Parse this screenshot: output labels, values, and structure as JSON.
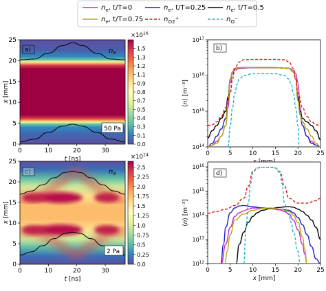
{
  "legend": {
    "entries": [
      {
        "label": "n_e, t/T=0",
        "color": "#cc22cc",
        "dash": "solid"
      },
      {
        "label": "n_e, t/T=0.25",
        "color": "#1f1fcc",
        "dash": "solid"
      },
      {
        "label": "n_e, t/T=0.5",
        "color": "#000000",
        "dash": "solid"
      },
      {
        "label": "n_e, t/T=0.75",
        "color": "#b5a800",
        "dash": "solid"
      },
      {
        "label": "n_O2+",
        "color": "#dd1111",
        "dash": "dashed"
      },
      {
        "label": "n_O−",
        "color": "#22b5c9",
        "dash": "dashed"
      }
    ]
  },
  "chart_data": [
    {
      "id": "a",
      "type": "heatmap",
      "panel_label": "a)",
      "species_label": "n_e",
      "corner_text": "50 Pa",
      "xlabel": "t [ns]",
      "ylabel": "x [mm]",
      "x_ticks": [
        "0",
        "10",
        "20",
        "30"
      ],
      "y_ticks": [
        "0",
        "5",
        "10",
        "15",
        "20",
        "25"
      ],
      "xlim": [
        0,
        37
      ],
      "ylim": [
        0,
        25
      ],
      "colorbar": {
        "exponent_label": "×10^16",
        "ticks": [
          "0.0",
          "0.1",
          "0.3",
          "0.4",
          "0.5",
          "0.7",
          "0.8",
          "0.9",
          "1.1",
          "1.2",
          "1.3",
          "1.5"
        ],
        "tick_values": [
          0.0,
          0.13,
          0.27,
          0.4,
          0.53,
          0.67,
          0.8,
          0.93,
          1.07,
          1.2,
          1.33,
          1.47
        ],
        "max": 1.6
      },
      "sheath_edges": {
        "t": [
          0,
          5,
          10,
          15,
          18.5,
          22,
          27,
          32,
          37
        ],
        "x_lower": [
          0.5,
          1.2,
          2.8,
          4.3,
          4.8,
          4.3,
          2.8,
          1.2,
          0.5
        ],
        "x_upper": [
          20.2,
          20.4,
          21.8,
          23.6,
          24.3,
          23.6,
          21.8,
          20.4,
          20.2
        ]
      }
    },
    {
      "id": "b",
      "type": "line",
      "panel_label": "b)",
      "xlabel": "x [mm]",
      "ylabel": "⟨n⟩ [m⁻³]",
      "x_ticks": [
        "0",
        "5",
        "10",
        "15",
        "20",
        "25"
      ],
      "y_ticks": [
        "10^14",
        "10^15",
        "10^16",
        "10^17"
      ],
      "xlim": [
        0,
        25
      ],
      "ylim_log10": [
        14,
        17
      ],
      "series": [
        {
          "ref": "n_e, t/T=0",
          "x": [
            0,
            1,
            2,
            3,
            4,
            4.5,
            5,
            5.5,
            6,
            7,
            10,
            12.5,
            15,
            18,
            19,
            19.5,
            20,
            20.5,
            21,
            22,
            23,
            24,
            25
          ],
          "log10": [
            14.0,
            14.05,
            14.15,
            14.3,
            14.6,
            15.1,
            15.8,
            16.05,
            16.15,
            16.2,
            16.22,
            16.22,
            16.22,
            16.2,
            16.15,
            16.05,
            15.8,
            15.1,
            14.6,
            14.3,
            14.15,
            14.05,
            14.0
          ]
        },
        {
          "ref": "n_e, t/T=0.25",
          "x": [
            0,
            1,
            2,
            3,
            4,
            4.5,
            5,
            5.5,
            6,
            7,
            10,
            12.5,
            15,
            18,
            19,
            19.5,
            20,
            20.5,
            21,
            22,
            23,
            24,
            25
          ],
          "log10": [
            14.0,
            14.1,
            14.3,
            14.5,
            14.8,
            15.3,
            15.9,
            16.1,
            16.2,
            16.22,
            16.22,
            16.22,
            16.22,
            16.2,
            16.1,
            15.9,
            15.3,
            14.9,
            14.6,
            14.3,
            14.1,
            14.05,
            14.0
          ]
        },
        {
          "ref": "n_e, t/T=0.5",
          "x": [
            0,
            1,
            2,
            3,
            4,
            4.5,
            5,
            5.5,
            6,
            7,
            10,
            12.5,
            15,
            18,
            19,
            19.5,
            20,
            20.5,
            21,
            22,
            23,
            24,
            25
          ],
          "log10": [
            14.25,
            14.45,
            14.6,
            14.8,
            15.0,
            15.4,
            15.9,
            16.1,
            16.2,
            16.22,
            16.22,
            16.22,
            16.22,
            16.2,
            16.1,
            15.9,
            15.4,
            15.0,
            14.8,
            14.7,
            14.6,
            14.45,
            14.2
          ]
        },
        {
          "ref": "n_e, t/T=0.75",
          "x": [
            0,
            1,
            2,
            3,
            4,
            4.5,
            5,
            5.5,
            6,
            7,
            10,
            12.5,
            15,
            18,
            19,
            19.5,
            20,
            20.5,
            21,
            22,
            23,
            24,
            25
          ],
          "log10": [
            14.0,
            14.05,
            14.1,
            14.3,
            14.6,
            15.3,
            15.9,
            16.1,
            16.2,
            16.22,
            16.22,
            16.22,
            16.22,
            16.2,
            16.1,
            15.9,
            15.3,
            14.9,
            14.7,
            14.5,
            14.3,
            14.1,
            14.0
          ]
        },
        {
          "ref": "n_O2+",
          "x": [
            0,
            1,
            2,
            3,
            4,
            5,
            5.5,
            6,
            7,
            8,
            10,
            12.5,
            15,
            17,
            18,
            19,
            19.5,
            20,
            21,
            22,
            23,
            24,
            25
          ],
          "log10": [
            14.6,
            14.62,
            14.7,
            14.85,
            15.1,
            15.5,
            15.9,
            16.2,
            16.38,
            16.44,
            16.45,
            16.45,
            16.45,
            16.44,
            16.38,
            16.2,
            15.9,
            15.5,
            15.1,
            14.85,
            14.7,
            14.62,
            14.6
          ]
        },
        {
          "ref": "n_O−",
          "x": [
            4.5,
            5,
            5.5,
            6,
            6.5,
            7,
            8,
            10,
            12.5,
            15,
            17,
            18,
            18.5,
            19,
            19.5,
            20,
            20.3
          ],
          "log10": [
            14.0,
            14.6,
            15.1,
            15.5,
            15.75,
            15.9,
            16.0,
            16.05,
            16.05,
            16.05,
            16.0,
            15.9,
            15.75,
            15.5,
            15.1,
            14.6,
            14.0
          ]
        }
      ]
    },
    {
      "id": "c",
      "type": "heatmap",
      "panel_label": "c)",
      "species_label": "n_e",
      "corner_text": "2 Pa",
      "xlabel": "t [ns]",
      "ylabel": "x [mm]",
      "x_ticks": [
        "0",
        "10",
        "20",
        "30"
      ],
      "y_ticks": [
        "0",
        "5",
        "10",
        "15",
        "20",
        "25"
      ],
      "xlim": [
        0,
        37
      ],
      "ylim": [
        0,
        25
      ],
      "colorbar": {
        "exponent_label": "×10^14",
        "ticks": [
          "0.0",
          "0.25",
          "0.5",
          "0.75",
          "1.0",
          "1.25",
          "1.5",
          "1.75",
          "2.0",
          "2.25",
          "2.5"
        ],
        "tick_values": [
          0.0,
          0.25,
          0.5,
          0.75,
          1.0,
          1.25,
          1.5,
          1.75,
          2.0,
          2.25,
          2.5
        ],
        "max": 2.65
      },
      "sheath_edges": {
        "t": [
          0,
          4,
          8,
          12,
          16,
          18.5,
          21,
          25,
          29,
          33,
          37
        ],
        "x_lower": [
          2.2,
          3.0,
          4.5,
          6.2,
          7.5,
          7.8,
          7.5,
          6.2,
          4.5,
          3.0,
          2.2
        ],
        "x_upper": [
          17.0,
          17.8,
          19.3,
          21.0,
          22.3,
          22.6,
          22.3,
          21.0,
          19.3,
          17.8,
          17.0
        ]
      }
    },
    {
      "id": "d",
      "type": "line",
      "panel_label": "d)",
      "xlabel": "x [mm]",
      "ylabel": "⟨n⟩ [m⁻³]",
      "x_ticks": [
        "0",
        "5",
        "10",
        "15",
        "20",
        "25"
      ],
      "y_ticks": [
        "10^12",
        "10^13",
        "10^14",
        "10^15",
        "10^16"
      ],
      "xlim": [
        0,
        25
      ],
      "ylim_log10": [
        12,
        16.2
      ],
      "series": [
        {
          "ref": "n_e, t/T=0",
          "x": [
            3,
            4,
            5,
            6,
            7,
            8,
            9,
            10,
            12,
            14,
            16,
            17,
            18,
            19,
            20,
            21,
            21.5,
            22
          ],
          "log10": [
            12.0,
            12.8,
            13.5,
            13.95,
            14.1,
            14.18,
            14.25,
            14.3,
            14.3,
            14.27,
            14.22,
            14.15,
            14.05,
            13.8,
            13.4,
            12.8,
            12.4,
            12.0
          ]
        },
        {
          "ref": "n_e, t/T=0.25",
          "x": [
            2.9,
            3.5,
            4,
            5,
            6,
            7,
            8,
            10,
            12,
            14,
            16,
            18,
            19,
            20,
            21,
            22,
            23,
            24,
            25
          ],
          "log10": [
            12.0,
            12.8,
            13.5,
            14.1,
            14.3,
            14.38,
            14.4,
            14.35,
            14.3,
            14.28,
            14.25,
            14.2,
            14.1,
            13.9,
            13.6,
            13.2,
            12.7,
            12.2,
            12.0
          ]
        },
        {
          "ref": "n_e, t/T=0.5",
          "x": [
            6.3,
            7,
            8,
            9,
            10,
            11,
            12,
            14,
            16,
            17,
            18,
            19,
            20,
            21,
            22,
            23,
            24,
            25
          ],
          "log10": [
            12.0,
            12.8,
            13.3,
            13.7,
            13.95,
            14.1,
            14.2,
            14.28,
            14.32,
            14.34,
            14.35,
            14.33,
            14.25,
            14.15,
            14.0,
            13.8,
            13.5,
            13.0
          ]
        },
        {
          "ref": "n_e, t/T=0.75",
          "x": [
            3.8,
            4.3,
            5,
            6,
            8,
            10,
            12,
            14,
            16,
            18,
            19,
            20,
            21,
            21.5,
            22
          ],
          "log10": [
            12.0,
            12.5,
            13.2,
            13.8,
            14.05,
            14.2,
            14.28,
            14.3,
            14.25,
            14.15,
            14.0,
            13.7,
            13.1,
            12.6,
            12.0
          ]
        },
        {
          "ref": "n_O2+",
          "x": [
            0,
            2,
            4,
            6,
            8,
            9,
            10,
            11,
            12,
            14,
            15,
            16,
            17,
            18,
            20,
            22,
            24,
            25
          ],
          "log10": [
            14.08,
            14.15,
            14.25,
            14.4,
            14.7,
            15.2,
            15.8,
            15.95,
            15.98,
            15.98,
            15.95,
            15.8,
            15.2,
            14.7,
            14.5,
            14.5,
            14.6,
            14.7
          ]
        },
        {
          "ref": "n_O−",
          "x": [
            8,
            8.5,
            9,
            9.5,
            10,
            11,
            12,
            14,
            15,
            16,
            16.5,
            17,
            17.5,
            18,
            18.5,
            19,
            20,
            20.5
          ],
          "log10": [
            12.0,
            13.5,
            14.5,
            15.3,
            15.75,
            15.95,
            15.98,
            15.98,
            15.95,
            15.75,
            15.3,
            14.5,
            14.2,
            14.0,
            13.7,
            13.3,
            12.5,
            12.0
          ]
        }
      ]
    }
  ]
}
